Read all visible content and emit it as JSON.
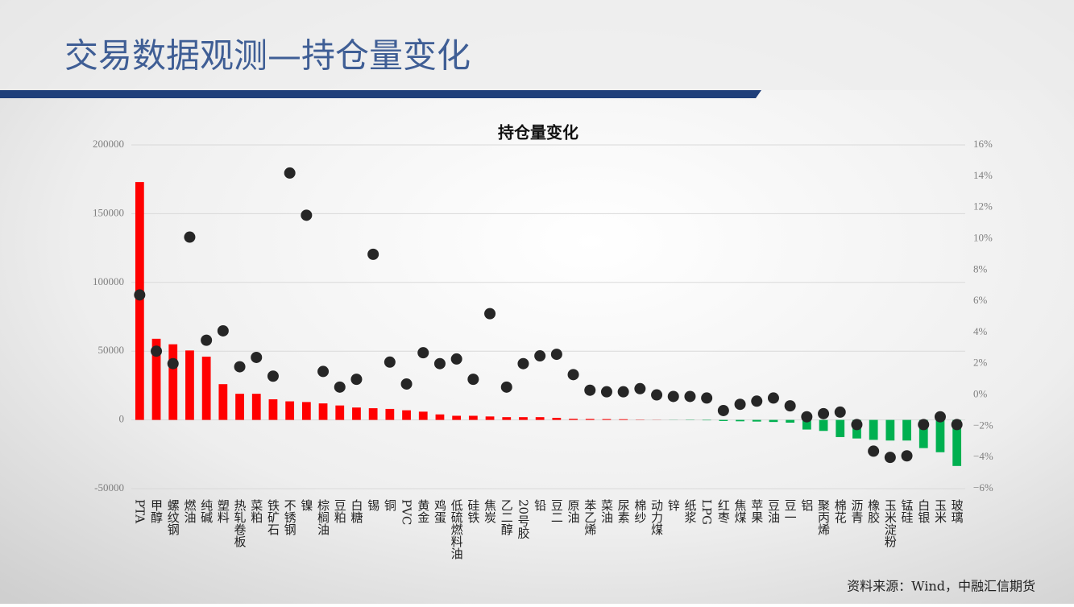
{
  "title": "交易数据观测—持仓量变化",
  "source": "资料来源：Wind，中融汇信期货",
  "chart_data": {
    "type": "combo",
    "title": "持仓量变化",
    "categories": [
      "PTA",
      "甲醇",
      "螺纹钢",
      "燃油",
      "纯碱",
      "塑料",
      "热轧卷板",
      "菜粕",
      "铁矿石",
      "不锈钢",
      "镍",
      "棕榈油",
      "豆粕",
      "白糖",
      "锡",
      "铜",
      "PVC",
      "黄金",
      "鸡蛋",
      "低硫燃料油",
      "硅铁",
      "焦炭",
      "乙二醇",
      "20号胶",
      "铅",
      "豆二",
      "原油",
      "苯乙烯",
      "菜油",
      "尿素",
      "棉纱",
      "动力煤",
      "锌",
      "纸浆",
      "LPG",
      "红枣",
      "焦煤",
      "苹果",
      "豆油",
      "豆一",
      "铝",
      "聚丙烯",
      "棉花",
      "沥青",
      "橡胶",
      "玉米淀粉",
      "锰硅",
      "白银",
      "玉米",
      "玻璃"
    ],
    "series": [
      {
        "type": "bar",
        "positive_color": "#ff0000",
        "negative_color": "#00b050",
        "values": [
          173000,
          59000,
          55000,
          50500,
          46000,
          26000,
          19000,
          19000,
          15000,
          13500,
          13000,
          12000,
          10500,
          9000,
          8500,
          8000,
          7000,
          6000,
          4000,
          3000,
          3000,
          2500,
          2000,
          2000,
          2000,
          1500,
          800,
          700,
          600,
          500,
          200,
          100,
          -100,
          -200,
          -300,
          -800,
          -1000,
          -1200,
          -1500,
          -2000,
          -7000,
          -8000,
          -12500,
          -13500,
          -14500,
          -15000,
          -15000,
          -20500,
          -23500,
          -33500
        ]
      },
      {
        "type": "scatter",
        "axis": "y2",
        "color": "#262626",
        "values": [
          6.4,
          2.8,
          2.0,
          10.1,
          3.5,
          4.1,
          1.8,
          2.4,
          1.2,
          14.2,
          11.5,
          1.5,
          0.5,
          1.0,
          9.0,
          2.1,
          0.7,
          2.7,
          2.0,
          2.3,
          1.0,
          5.2,
          0.5,
          2.0,
          2.5,
          2.6,
          1.3,
          0.3,
          0.2,
          0.2,
          0.4,
          0.0,
          -0.1,
          -0.1,
          -0.2,
          -1.0,
          -0.6,
          -0.4,
          -0.2,
          -0.7,
          -1.4,
          -1.2,
          -1.1,
          -1.9,
          -3.6,
          -4.0,
          -3.9,
          -1.9,
          -1.4,
          -1.9
        ]
      }
    ],
    "ylim": [
      -50000,
      200000
    ],
    "yticks": [
      -50000,
      0,
      50000,
      100000,
      150000,
      200000
    ],
    "y2lim": [
      -6,
      16
    ],
    "y2ticks": [
      {
        "value": -6,
        "label": "−6%"
      },
      {
        "value": -4,
        "label": "−4%"
      },
      {
        "value": -2,
        "label": "−2%"
      },
      {
        "value": 0,
        "label": "0%"
      },
      {
        "value": 2,
        "label": "2%"
      },
      {
        "value": 4,
        "label": "4%"
      },
      {
        "value": 6,
        "label": "6%"
      },
      {
        "value": 8,
        "label": "8%"
      },
      {
        "value": 10,
        "label": "10%"
      },
      {
        "value": 12,
        "label": "12%"
      },
      {
        "value": 14,
        "label": "14%"
      },
      {
        "value": 16,
        "label": "16%"
      }
    ],
    "grid": true
  }
}
